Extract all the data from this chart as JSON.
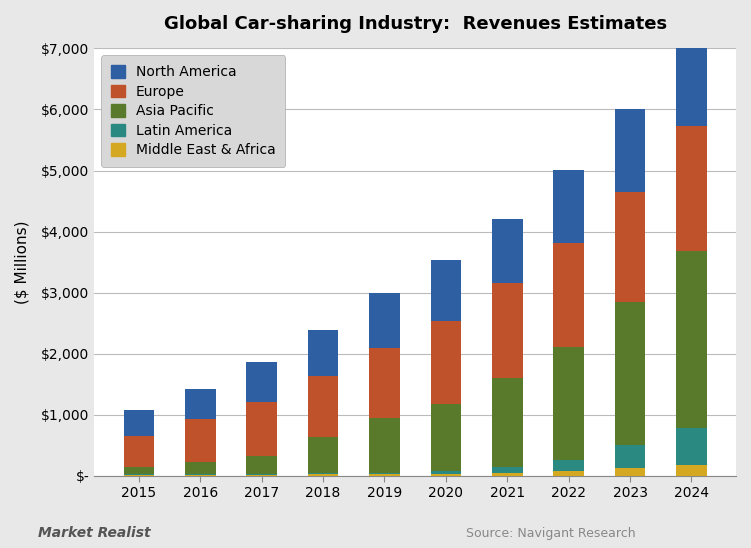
{
  "title": "Global Car-sharing Industry:  Revenues Estimates",
  "ylabel": "($ Millions)",
  "years": [
    2015,
    2016,
    2017,
    2018,
    2019,
    2020,
    2021,
    2022,
    2023,
    2024
  ],
  "segments": {
    "Middle East & Africa": {
      "color": "#D4A820",
      "values": [
        10,
        10,
        15,
        20,
        20,
        30,
        50,
        80,
        120,
        180
      ]
    },
    "Latin America": {
      "color": "#2A8A82",
      "values": [
        10,
        15,
        20,
        30,
        30,
        50,
        100,
        180,
        380,
        600
      ]
    },
    "Asia Pacific": {
      "color": "#5A7A2B",
      "values": [
        130,
        200,
        280,
        580,
        900,
        1100,
        1450,
        1850,
        2350,
        2900
      ]
    },
    "Europe": {
      "color": "#C0522B",
      "values": [
        500,
        700,
        900,
        1000,
        1150,
        1350,
        1550,
        1700,
        1800,
        2050
      ]
    },
    "North America": {
      "color": "#2E5FA3",
      "values": [
        430,
        500,
        650,
        750,
        900,
        1000,
        1050,
        1200,
        1350,
        1550
      ]
    }
  },
  "ylim": [
    0,
    7000
  ],
  "yticks": [
    0,
    1000,
    2000,
    3000,
    4000,
    5000,
    6000,
    7000
  ],
  "ytick_labels": [
    "$-",
    "$1,000",
    "$2,000",
    "$3,000",
    "$4,000",
    "$5,000",
    "$6,000",
    "$7,000"
  ],
  "bg_color": "#E8E8E8",
  "plot_bg_color": "#FFFFFF",
  "grid_color": "#BBBBBB",
  "legend_bg": "#D8D8D8",
  "legend_order": [
    "North America",
    "Europe",
    "Asia Pacific",
    "Latin America",
    "Middle East & Africa"
  ],
  "watermark": "Market Realist",
  "source": "Source: Navigant Research"
}
